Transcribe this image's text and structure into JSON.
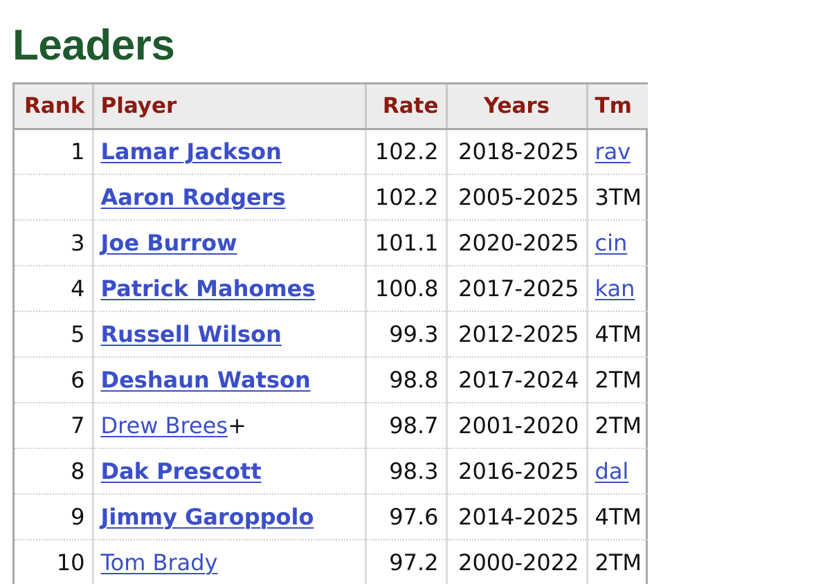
{
  "page": {
    "title": "Leaders"
  },
  "table": {
    "headers": {
      "rank": "Rank",
      "player": "Player",
      "rate": "Rate",
      "years": "Years",
      "tm": "Tm"
    },
    "rows": [
      {
        "rank": "1",
        "player": "Lamar Jackson",
        "suffix": "",
        "active": true,
        "rate": "102.2",
        "years": "2018-2025",
        "tm": "rav",
        "tm_link": true
      },
      {
        "rank": "",
        "player": "Aaron Rodgers",
        "suffix": "",
        "active": true,
        "rate": "102.2",
        "years": "2005-2025",
        "tm": "3TM",
        "tm_link": false
      },
      {
        "rank": "3",
        "player": "Joe Burrow",
        "suffix": "",
        "active": true,
        "rate": "101.1",
        "years": "2020-2025",
        "tm": "cin",
        "tm_link": true
      },
      {
        "rank": "4",
        "player": "Patrick Mahomes",
        "suffix": "",
        "active": true,
        "rate": "100.8",
        "years": "2017-2025",
        "tm": "kan",
        "tm_link": true
      },
      {
        "rank": "5",
        "player": "Russell Wilson",
        "suffix": "",
        "active": true,
        "rate": "99.3",
        "years": "2012-2025",
        "tm": "4TM",
        "tm_link": false
      },
      {
        "rank": "6",
        "player": "Deshaun Watson",
        "suffix": "",
        "active": true,
        "rate": "98.8",
        "years": "2017-2024",
        "tm": "2TM",
        "tm_link": false
      },
      {
        "rank": "7",
        "player": "Drew Brees",
        "suffix": "+",
        "active": false,
        "rate": "98.7",
        "years": "2001-2020",
        "tm": "2TM",
        "tm_link": false
      },
      {
        "rank": "8",
        "player": "Dak Prescott",
        "suffix": "",
        "active": true,
        "rate": "98.3",
        "years": "2016-2025",
        "tm": "dal",
        "tm_link": true
      },
      {
        "rank": "9",
        "player": "Jimmy Garoppolo",
        "suffix": "",
        "active": true,
        "rate": "97.6",
        "years": "2014-2025",
        "tm": "4TM",
        "tm_link": false
      },
      {
        "rank": "10",
        "player": "Tom Brady",
        "suffix": "",
        "active": false,
        "rate": "97.2",
        "years": "2000-2022",
        "tm": "2TM",
        "tm_link": false
      }
    ]
  },
  "colors": {
    "title": "#1f5a2e",
    "header_text": "#8b1a10",
    "link": "#3b4fc8",
    "header_bg": "#ececec"
  }
}
